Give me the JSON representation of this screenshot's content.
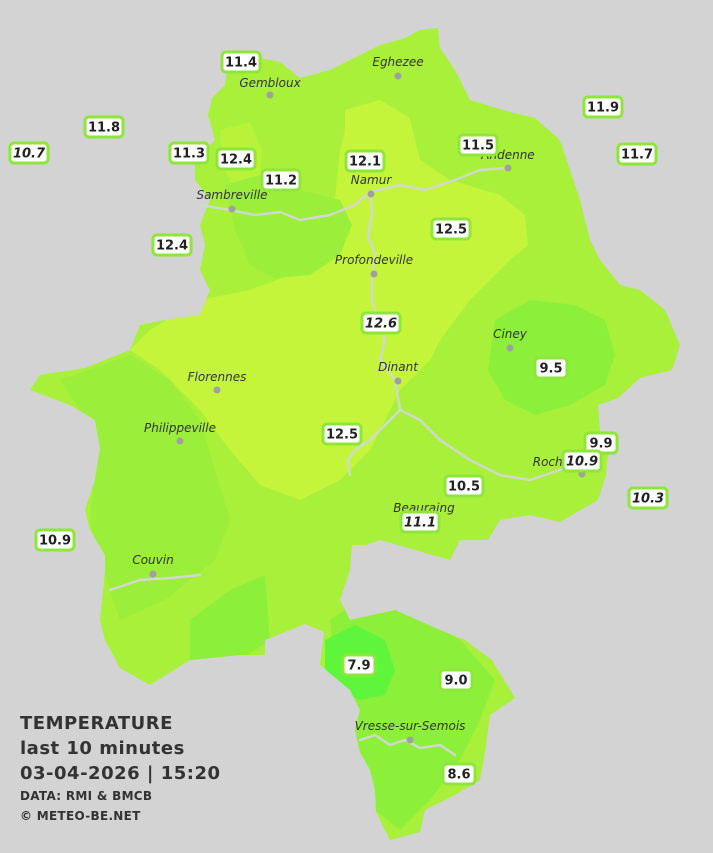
{
  "info": {
    "title": "TEMPERATURE",
    "subtitle": "last 10 minutes",
    "datetime": "03-04-2026  |  15:20",
    "source": "DATA: RMI & BMCB",
    "copyright": "© METEO-BE.NET"
  },
  "colors": {
    "background": "#d3d3d3",
    "province_base": "#a8f03a",
    "warm_zone": "#c5f53a",
    "cool_zone": "#8cf03a",
    "cold_spot": "#5ef53a",
    "river": "#d0d8d0",
    "box_border": "#8fe63a",
    "city_dot": "#a0a0a0"
  },
  "cities": [
    {
      "name": "Eghezee"
    },
    {
      "name": "Gembloux"
    },
    {
      "name": "Andenne"
    },
    {
      "name": "Namur"
    },
    {
      "name": "Sambreville"
    },
    {
      "name": "Profondeville"
    },
    {
      "name": "Ciney"
    },
    {
      "name": "Florennes"
    },
    {
      "name": "Dinant"
    },
    {
      "name": "Philippeville"
    },
    {
      "name": "Rochefort"
    },
    {
      "name": "Beauraing"
    },
    {
      "name": "Couvin"
    },
    {
      "name": "Vresse-sur-Semois"
    }
  ],
  "stations": [
    {
      "value": "11.4",
      "estimated": false
    },
    {
      "value": "11.9",
      "estimated": false
    },
    {
      "value": "11.8",
      "estimated": false
    },
    {
      "value": "10.7",
      "estimated": true
    },
    {
      "value": "11.5",
      "estimated": false
    },
    {
      "value": "11.7",
      "estimated": false
    },
    {
      "value": "11.3",
      "estimated": false
    },
    {
      "value": "12.4",
      "estimated": false
    },
    {
      "value": "12.1",
      "estimated": false
    },
    {
      "value": "11.2",
      "estimated": false
    },
    {
      "value": "12.5",
      "estimated": false
    },
    {
      "value": "12.4",
      "estimated": false
    },
    {
      "value": "12.6",
      "estimated": true
    },
    {
      "value": "9.5",
      "estimated": false
    },
    {
      "value": "12.5",
      "estimated": false
    },
    {
      "value": "9.9",
      "estimated": false
    },
    {
      "value": "10.9",
      "estimated": true
    },
    {
      "value": "10.5",
      "estimated": false
    },
    {
      "value": "10.3",
      "estimated": true
    },
    {
      "value": "11.1",
      "estimated": true
    },
    {
      "value": "10.9",
      "estimated": false
    },
    {
      "value": "7.9",
      "estimated": false
    },
    {
      "value": "9.0",
      "estimated": false
    },
    {
      "value": "8.6",
      "estimated": false
    }
  ]
}
